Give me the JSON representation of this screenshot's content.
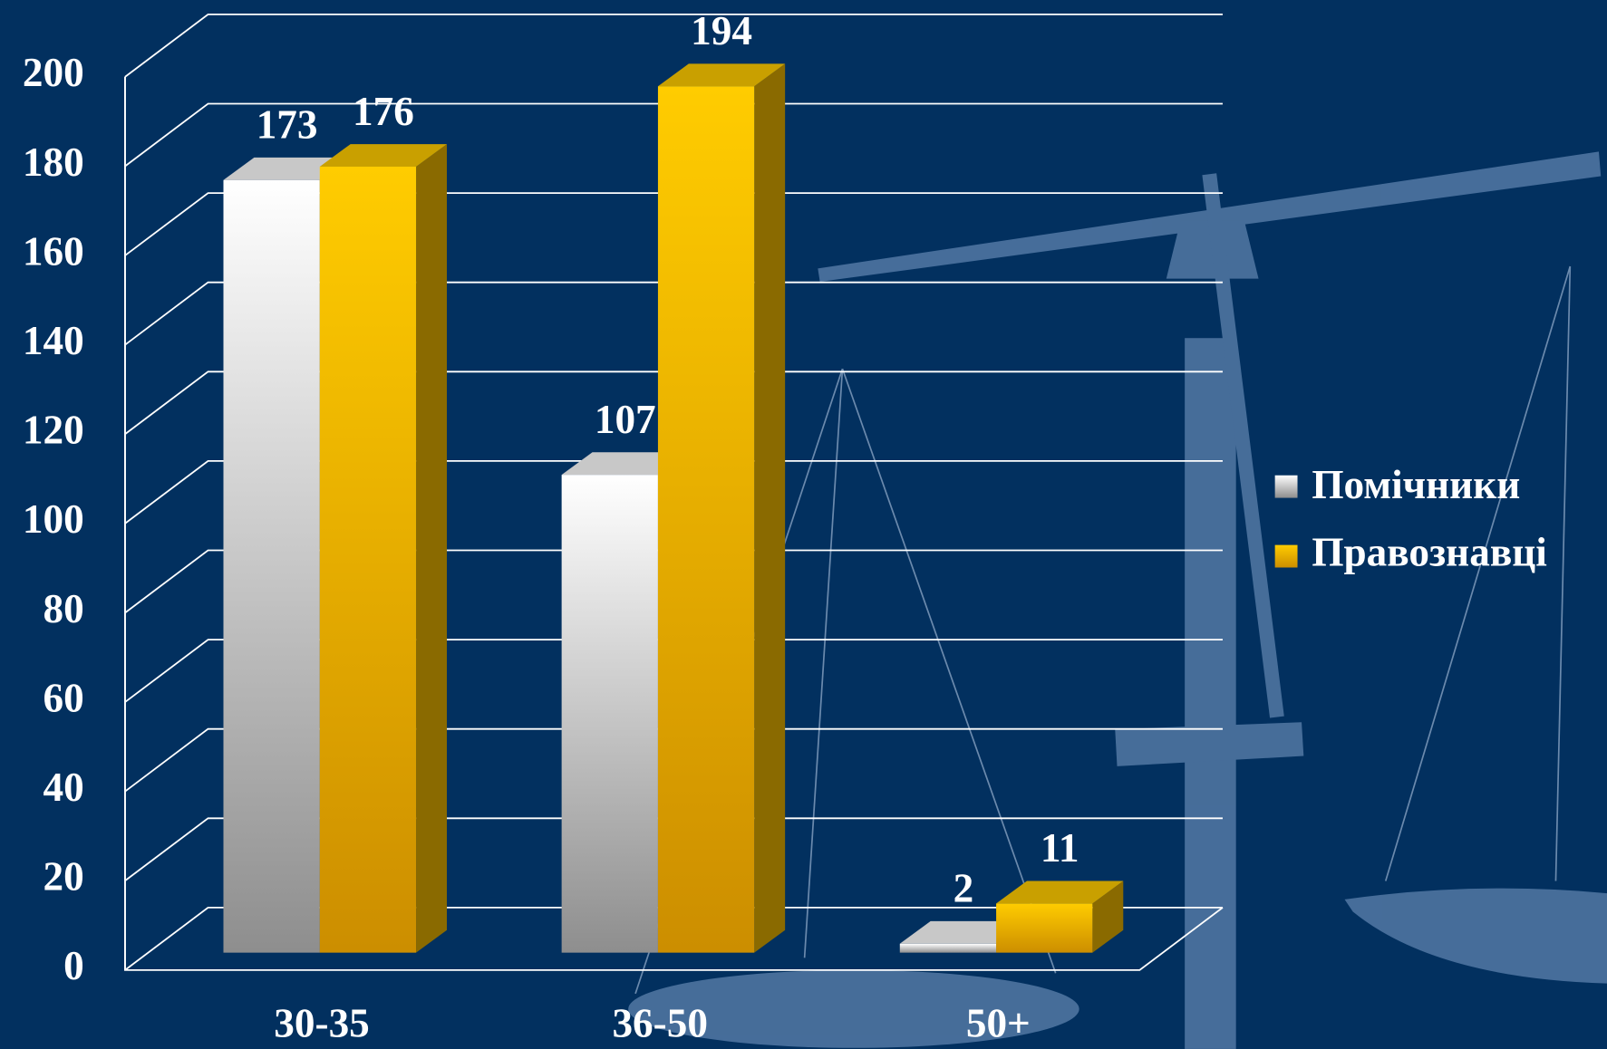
{
  "chart_data": {
    "type": "bar3d",
    "categories": [
      "30-35",
      "36-50",
      "50+"
    ],
    "series": [
      {
        "name": "Помічники",
        "color": "#d9d9d9",
        "values": [
          173,
          107,
          2
        ]
      },
      {
        "name": "Правознавці",
        "color": "#f0b800",
        "values": [
          176,
          194,
          11
        ]
      }
    ],
    "ylim": [
      0,
      200
    ],
    "yticks": [
      0,
      20,
      40,
      60,
      80,
      100,
      120,
      140,
      160,
      180,
      200
    ],
    "grid": true,
    "legend": "right"
  }
}
